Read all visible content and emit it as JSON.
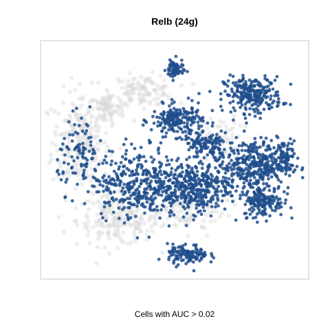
{
  "chart_data": {
    "type": "scatter",
    "title": "Relb (24g)",
    "caption": "Cells with AUC > 0.02",
    "axes_visible": false,
    "grid": false,
    "frame": true,
    "xlim": [
      0,
      100
    ],
    "ylim": [
      0,
      100
    ],
    "series": [
      {
        "role": "background",
        "color": "#d9d9d9",
        "clusters": [
          {
            "cx": 14,
            "cy": 58,
            "rx": 10,
            "ry": 20,
            "n": 240
          },
          {
            "cx": 28,
            "cy": 24,
            "rx": 14,
            "ry": 10,
            "n": 200
          },
          {
            "cx": 38,
            "cy": 80,
            "rx": 11,
            "ry": 6,
            "n": 120
          },
          {
            "cx": 24,
            "cy": 72,
            "rx": 6,
            "ry": 6,
            "n": 80
          },
          {
            "cx": 52,
            "cy": 30,
            "rx": 16,
            "ry": 12,
            "n": 140
          },
          {
            "cx": 65,
            "cy": 60,
            "rx": 10,
            "ry": 8,
            "n": 60
          }
        ]
      },
      {
        "role": "highlighted",
        "color": "#1f4e8c",
        "clusters": [
          {
            "cx": 80,
            "cy": 78,
            "rx": 10,
            "ry": 7,
            "n": 260
          },
          {
            "cx": 51,
            "cy": 67,
            "rx": 9,
            "ry": 6,
            "n": 200
          },
          {
            "cx": 50,
            "cy": 89,
            "rx": 3,
            "ry": 4,
            "n": 70
          },
          {
            "cx": 80,
            "cy": 48,
            "rx": 13,
            "ry": 10,
            "n": 380
          },
          {
            "cx": 84,
            "cy": 32,
            "rx": 7,
            "ry": 6,
            "n": 160
          },
          {
            "cx": 56,
            "cy": 38,
            "rx": 14,
            "ry": 10,
            "n": 380
          },
          {
            "cx": 35,
            "cy": 40,
            "rx": 15,
            "ry": 14,
            "n": 340
          },
          {
            "cx": 55,
            "cy": 9,
            "rx": 7,
            "ry": 4,
            "n": 120
          },
          {
            "cx": 14,
            "cy": 52,
            "rx": 8,
            "ry": 14,
            "n": 90
          },
          {
            "cx": 62,
            "cy": 56,
            "rx": 8,
            "ry": 6,
            "n": 120
          },
          {
            "cx": 92,
            "cy": 52,
            "rx": 5,
            "ry": 7,
            "n": 60
          }
        ]
      }
    ]
  }
}
